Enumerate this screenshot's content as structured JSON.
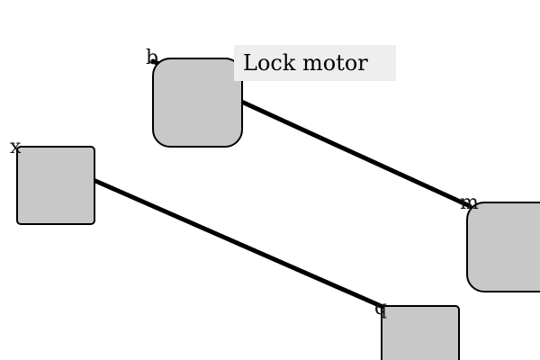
{
  "diagram": {
    "edge_label": "Lock motor",
    "ports": {
      "b": "b",
      "x": "x",
      "m": "m",
      "q": "q"
    },
    "colors": {
      "node_fill": "#c8c8c8",
      "node_stroke": "#000000",
      "edge": "#000000",
      "label_background": "#eeeeee"
    }
  }
}
